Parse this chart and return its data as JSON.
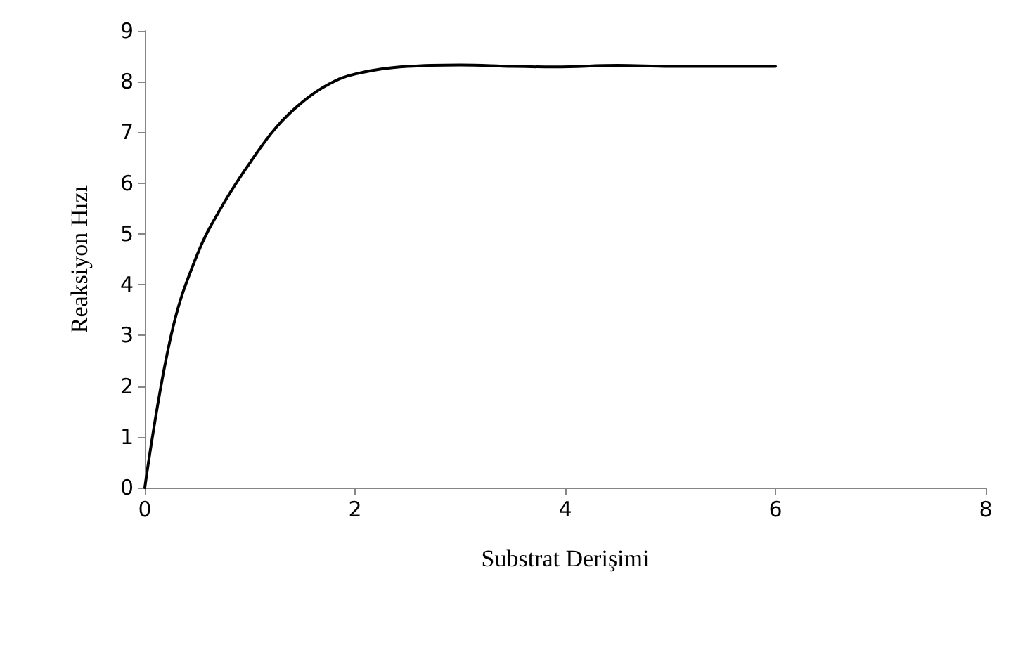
{
  "chart_data": {
    "type": "line",
    "xlabel": "Substrat Derişimi",
    "ylabel": "Reaksiyon Hızı",
    "x": [
      0,
      0.25,
      0.5,
      0.75,
      1,
      1.25,
      1.5,
      1.75,
      2,
      2.5,
      3,
      3.5,
      3.9,
      4.5,
      5,
      6
    ],
    "series": [
      {
        "color": "#000000",
        "values": [
          0,
          3.0,
          4.6,
          5.6,
          6.4,
          7.1,
          7.6,
          7.95,
          8.15,
          8.3,
          8.33,
          8.3,
          8.29,
          8.32,
          8.3,
          8.3
        ]
      }
    ],
    "xlim": [
      0,
      8
    ],
    "xticks": [
      0,
      2,
      4,
      6,
      8
    ],
    "ylim": [
      0,
      9
    ],
    "yticks": [
      0,
      1,
      2,
      3,
      4,
      5,
      6,
      7,
      8,
      9
    ],
    "grid": false,
    "marker": "none",
    "line_style": "solid"
  }
}
